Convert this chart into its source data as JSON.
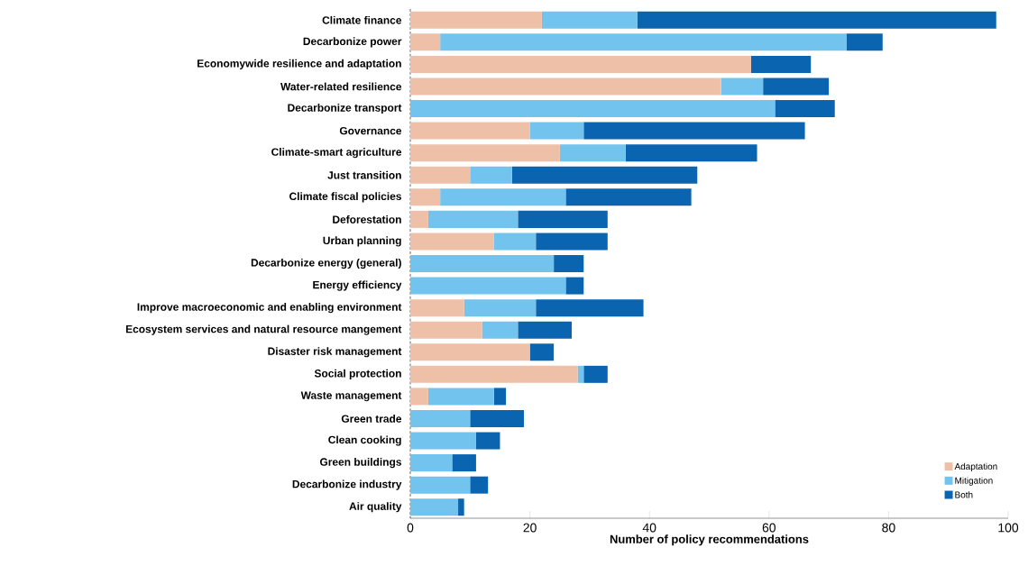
{
  "chart_data": {
    "type": "bar",
    "orientation": "horizontal",
    "stacked": true,
    "xlabel": "Number of policy recommendations",
    "categories": [
      "Climate finance",
      "Decarbonize power",
      "Economywide resilience and adaptation",
      "Water-related resilience",
      "Decarbonize transport",
      "Governance",
      "Climate-smart agriculture",
      "Just transition",
      "Climate fiscal policies",
      "Deforestation",
      "Urban planning",
      "Decarbonize energy (general)",
      "Energy efficiency",
      "Improve macroeconomic and enabling environment",
      "Ecosystem services and natural resource mangement",
      "Disaster risk management",
      "Social protection",
      "Waste management",
      "Green trade",
      "Clean cooking",
      "Green buildings",
      "Decarbonize industry",
      "Air quality"
    ],
    "series": [
      {
        "name": "Adaptation",
        "color": "#edc0a7",
        "values": [
          22,
          5,
          57,
          52,
          0,
          20,
          25,
          10,
          5,
          3,
          14,
          0,
          0,
          9,
          12,
          20,
          28,
          3,
          0,
          0,
          0,
          0,
          0
        ]
      },
      {
        "name": "Mitigation",
        "color": "#72c3ed",
        "values": [
          16,
          68,
          0,
          7,
          61,
          9,
          11,
          7,
          21,
          15,
          7,
          24,
          26,
          12,
          6,
          0,
          1,
          11,
          10,
          11,
          7,
          10,
          8
        ]
      },
      {
        "name": "Both",
        "color": "#0a64b0",
        "values": [
          60,
          6,
          10,
          11,
          10,
          37,
          22,
          31,
          21,
          15,
          12,
          5,
          3,
          18,
          9,
          4,
          4,
          2,
          9,
          4,
          4,
          3,
          1
        ]
      }
    ],
    "xlim": [
      0,
      100
    ],
    "xticks": [
      0,
      20,
      40,
      60,
      80,
      100
    ],
    "grid": false,
    "legend": "bottom right"
  }
}
